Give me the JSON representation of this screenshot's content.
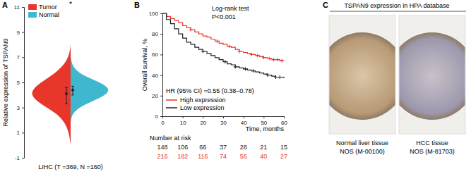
{
  "chart_data": [
    {
      "type": "violin",
      "panel": "A",
      "y_label": "Relative expression of TSPAN9",
      "categories": [
        "LIHC (T =369, N =160)"
      ],
      "ylim": [
        -1,
        11
      ],
      "yticks": [
        -1,
        1,
        3,
        5,
        7,
        9,
        11
      ],
      "legend": "top-left",
      "density_y": [
        0,
        0.5,
        1,
        1.5,
        2,
        2.5,
        3,
        3.5,
        4,
        4.5,
        5,
        5.5,
        6,
        6.5,
        7,
        7.5,
        8
      ],
      "series": [
        {
          "name": "Tumor",
          "color": "#e8372a",
          "density": [
            0,
            0.02,
            0.05,
            0.1,
            0.2,
            0.35,
            0.6,
            0.85,
            1.0,
            0.95,
            0.75,
            0.5,
            0.3,
            0.15,
            0.06,
            0.02,
            0
          ],
          "median": 4.1,
          "iqr": [
            3.3,
            4.6
          ]
        },
        {
          "name": "Normal",
          "color": "#3fb8cf",
          "density": [
            0,
            0,
            0,
            0,
            0,
            0.05,
            0.2,
            0.55,
            0.9,
            1.0,
            0.75,
            0.35,
            0.12,
            0.03,
            0,
            0,
            0
          ],
          "median": 4.4,
          "iqr": [
            4.0,
            4.7
          ]
        }
      ],
      "annotation": "*",
      "annotation_y": 11.2
    },
    {
      "type": "line",
      "panel": "B",
      "line_style": "step",
      "marker": "plus",
      "x_label": "Time, months",
      "y_label": "Overall survival, %",
      "xlim": [
        0,
        60
      ],
      "xticks": [
        0,
        10,
        20,
        30,
        40,
        50,
        60
      ],
      "ylim": [
        0,
        100
      ],
      "yticks": [
        0,
        20,
        40,
        60,
        80,
        100
      ],
      "legend": "bottom-left",
      "x": [
        0,
        2,
        4,
        6,
        8,
        10,
        12,
        14,
        16,
        18,
        20,
        22,
        24,
        26,
        28,
        30,
        32,
        34,
        36,
        38,
        40,
        42,
        44,
        46,
        48,
        50,
        52,
        54,
        56,
        58,
        60
      ],
      "series": [
        {
          "name": "High expression",
          "color": "#e8372a",
          "values": [
            100,
            97,
            95,
            93,
            91,
            88,
            86,
            84,
            82,
            80,
            78,
            77,
            75,
            73,
            71,
            70,
            68,
            67,
            65,
            63,
            62,
            61,
            60,
            59,
            58,
            57,
            56,
            55,
            55,
            54,
            54
          ],
          "censored": [
            14,
            27,
            33,
            38,
            44,
            47,
            50,
            53,
            55,
            57,
            59
          ]
        },
        {
          "name": "Low expression",
          "color": "#222222",
          "values": [
            100,
            94,
            90,
            85,
            80,
            76,
            72,
            70,
            67,
            65,
            63,
            61,
            59,
            57,
            55,
            53,
            51,
            50,
            48,
            47,
            46,
            45,
            44,
            43,
            42,
            41,
            40,
            39,
            38,
            38,
            37
          ],
          "censored": [
            20,
            31,
            36,
            41,
            45,
            52,
            56,
            58
          ]
        }
      ],
      "annotations": [
        "Log-rank test",
        "P<0.001",
        "HR (95% CI) =0.55 (0.38–0.78)"
      ],
      "risk_table": {
        "title": "Number at risk",
        "rows": [
          {
            "color": "#222222",
            "values": [
              148,
              106,
              66,
              37,
              28,
              21,
              15
            ]
          },
          {
            "color": "#e8372a",
            "values": [
              216,
              182,
              116,
              74,
              56,
              40,
              27
            ]
          }
        ]
      }
    },
    {
      "type": "image",
      "panel": "C",
      "title": "TSPAN9 expression in HPA database",
      "images": [
        {
          "caption": "Normal liver tissue",
          "code": "NOS (M-00100)"
        },
        {
          "caption": "HCC tissue",
          "code": "NOS (M-81703)"
        }
      ]
    }
  ]
}
